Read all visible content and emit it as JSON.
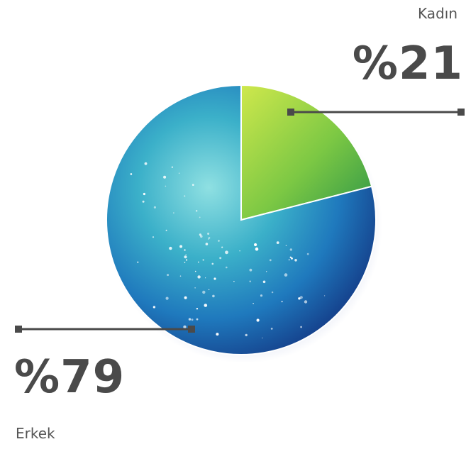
{
  "chart_data": {
    "type": "pie",
    "slices": [
      {
        "category": "Kadın",
        "value": 21,
        "value_label": "%21",
        "color": "#8bc63e"
      },
      {
        "category": "Erkek",
        "value": 79,
        "value_label": "%79",
        "color": "#1f6fb0"
      }
    ],
    "title": "",
    "legend": "none"
  },
  "colors": {
    "text": "#4a4a4a",
    "leader": "#4a4a4a",
    "green_light": "#c9e64a",
    "green_dark": "#2f9a48",
    "blue_light": "#6fd3d8",
    "blue_mid": "#2a87c6",
    "navy": "#132e7a"
  }
}
